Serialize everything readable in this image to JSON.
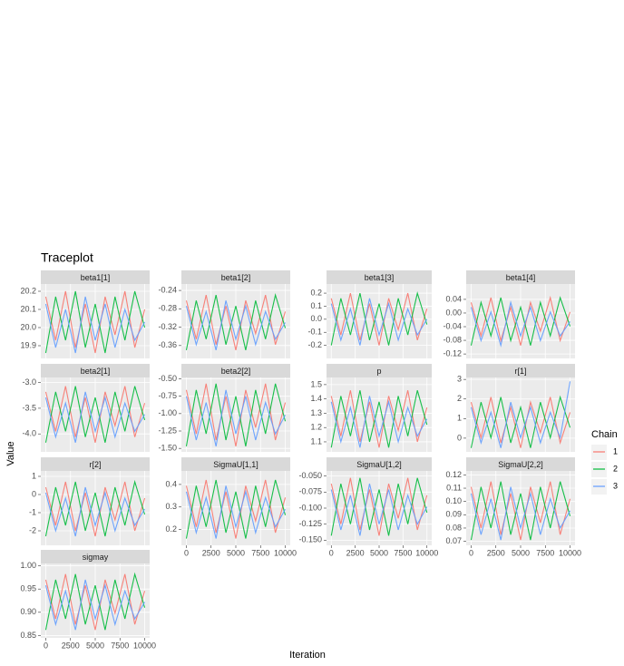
{
  "chart_data": {
    "type": "line",
    "title": "Traceplot",
    "xlabel": "Iteration",
    "ylabel": "Value",
    "legend_title": "Chain",
    "series": [
      {
        "name": "1",
        "color": "#F8766D"
      },
      {
        "name": "2",
        "color": "#00BA38"
      },
      {
        "name": "3",
        "color": "#619CFF"
      }
    ],
    "x": [
      0,
      1000,
      2000,
      3000,
      4000,
      5000,
      6000,
      7000,
      8000,
      9000,
      10000
    ],
    "xlim": [
      -500,
      10500
    ],
    "xticks": [
      0,
      2500,
      5000,
      7500,
      10000
    ],
    "grid": true,
    "facets": [
      {
        "name": "beta1[1]",
        "ylim": [
          19.83,
          20.24
        ],
        "yticks": [
          19.9,
          {
            "value": 20,
            "label": "20.0"
          },
          20.1,
          20.2
        ],
        "values": [
          [
            20.17,
            19.93,
            20.2,
            19.89,
            20.13,
            19.86,
            20.17,
            19.96,
            20.2,
            19.89,
            20.1
          ],
          [
            19.86,
            20.17,
            19.93,
            20.2,
            19.89,
            20.13,
            19.86,
            20.17,
            19.93,
            20.2,
            20.0
          ],
          [
            20.13,
            19.89,
            20.1,
            19.86,
            20.17,
            19.93,
            20.13,
            19.89,
            20.1,
            19.93,
            20.03
          ]
        ]
      },
      {
        "name": "beta1[2]",
        "ylim": [
          -0.388,
          -0.226
        ],
        "yticks": [
          -0.36,
          -0.32,
          -0.28,
          -0.24
        ],
        "values": [
          [
            -0.262,
            -0.346,
            -0.25,
            -0.358,
            -0.274,
            -0.37,
            -0.262,
            -0.334,
            -0.25,
            -0.358,
            -0.286
          ],
          [
            -0.37,
            -0.262,
            -0.346,
            -0.25,
            -0.358,
            -0.274,
            -0.37,
            -0.262,
            -0.346,
            -0.25,
            -0.322
          ],
          [
            -0.274,
            -0.358,
            -0.286,
            -0.37,
            -0.262,
            -0.346,
            -0.274,
            -0.358,
            -0.286,
            -0.346,
            -0.31
          ]
        ]
      },
      {
        "name": "beta1[3]",
        "ylim": [
          -0.3,
          0.27
        ],
        "yticks": [
          -0.2,
          -0.1,
          {
            "value": 0,
            "label": "0.0"
          },
          0.1,
          0.2
        ],
        "values": [
          [
            0.16,
            -0.12,
            0.2,
            -0.16,
            0.12,
            -0.2,
            0.16,
            -0.08,
            0.2,
            -0.16,
            0.08
          ],
          [
            -0.2,
            0.16,
            -0.12,
            0.2,
            -0.16,
            0.12,
            -0.2,
            0.16,
            -0.12,
            0.2,
            -0.04
          ],
          [
            0.12,
            -0.16,
            0.08,
            -0.2,
            0.16,
            -0.12,
            0.12,
            -0.16,
            0.08,
            -0.12,
            0
          ]
        ]
      },
      {
        "name": "beta1[4]",
        "ylim": [
          -0.133,
          0.085
        ],
        "yticks": [
          -0.12,
          -0.08,
          -0.04,
          {
            "value": 0,
            "label": "0.00"
          },
          0.04
        ],
        "values": [
          [
            0.031,
            -0.067,
            0.045,
            -0.081,
            0.017,
            -0.095,
            0.031,
            -0.053,
            0.045,
            -0.081,
            0.003
          ],
          [
            -0.095,
            0.031,
            -0.067,
            0.045,
            -0.081,
            0.017,
            -0.095,
            0.031,
            -0.067,
            0.045,
            -0.039
          ],
          [
            0.017,
            -0.081,
            0.003,
            -0.095,
            0.031,
            -0.067,
            0.017,
            -0.081,
            0.003,
            -0.067,
            -0.025
          ]
        ]
      },
      {
        "name": "beta2[1]",
        "ylim": [
          -4.35,
          -2.9
        ],
        "yticks": [
          {
            "value": -4,
            "label": "-4.0"
          },
          -3.5,
          {
            "value": -3,
            "label": "-3.0"
          }
        ],
        "values": [
          [
            -3.18,
            -3.95,
            -3.07,
            -4.06,
            -3.29,
            -4.17,
            -3.18,
            -3.84,
            -3.07,
            -4.06,
            -3.4
          ],
          [
            -4.17,
            -3.18,
            -3.95,
            -3.07,
            -4.06,
            -3.29,
            -4.17,
            -3.18,
            -3.95,
            -3.07,
            -3.73
          ],
          [
            -3.29,
            -4.06,
            -3.4,
            -4.17,
            -3.18,
            -3.95,
            -3.29,
            -4.06,
            -3.4,
            -3.95,
            -3.62
          ]
        ]
      },
      {
        "name": "beta2[2]",
        "ylim": [
          -1.55,
          -0.48
        ],
        "yticks": [
          {
            "value": -1.5,
            "label": "-1.50"
          },
          -1.25,
          {
            "value": -1,
            "label": "-1.00"
          },
          -0.75,
          {
            "value": -0.5,
            "label": "-0.50"
          }
        ],
        "values": [
          [
            -0.66,
            -1.29,
            -0.57,
            -1.38,
            -0.75,
            -1.47,
            -0.66,
            -1.2,
            -0.57,
            -1.38,
            -0.84
          ],
          [
            -1.47,
            -0.66,
            -1.29,
            -0.57,
            -1.38,
            -0.75,
            -1.47,
            -0.66,
            -1.29,
            -0.57,
            -1.11
          ],
          [
            -0.75,
            -1.38,
            -0.84,
            -1.47,
            -0.66,
            -1.29,
            -0.75,
            -1.38,
            -0.84,
            -1.29,
            -1.02
          ]
        ]
      },
      {
        "name": "p",
        "ylim": [
          1.03,
          1.55
        ],
        "yticks": [
          1.1,
          1.2,
          1.3,
          1.4,
          1.5
        ],
        "values": [
          [
            1.42,
            1.14,
            1.46,
            1.1,
            1.38,
            1.06,
            1.42,
            1.18,
            1.46,
            1.1,
            1.34
          ],
          [
            1.06,
            1.42,
            1.14,
            1.46,
            1.1,
            1.38,
            1.06,
            1.42,
            1.14,
            1.46,
            1.22
          ],
          [
            1.38,
            1.1,
            1.34,
            1.06,
            1.42,
            1.14,
            1.38,
            1.1,
            1.34,
            1.14,
            1.26
          ]
        ]
      },
      {
        "name": "r[1]",
        "ylim": [
          -0.7,
          3.1
        ],
        "yticks": [
          0,
          1,
          2,
          3
        ],
        "values": [
          [
            1.84,
            0.02,
            2.1,
            -0.24,
            1.58,
            -0.5,
            1.84,
            0.28,
            2.1,
            -0.24,
            1.32
          ],
          [
            -0.5,
            1.84,
            0.02,
            2.1,
            -0.24,
            1.58,
            -0.5,
            1.84,
            0.02,
            2.1,
            0.54
          ],
          [
            1.58,
            -0.24,
            1.32,
            -0.5,
            1.84,
            0.02,
            1.58,
            -0.24,
            1.32,
            0.02,
            2.9
          ]
        ]
      },
      {
        "name": "r[2]",
        "ylim": [
          -2.8,
          1.3
        ],
        "yticks": [
          -2,
          -1,
          0,
          1
        ],
        "values": [
          [
            0.4,
            -1.7,
            0.7,
            -2.0,
            0.1,
            -2.3,
            0.4,
            -1.4,
            0.7,
            -2.0,
            -0.2
          ],
          [
            -2.3,
            0.4,
            -1.7,
            0.7,
            -2.0,
            0.1,
            -2.3,
            0.4,
            -1.7,
            0.7,
            -1.1
          ],
          [
            0.1,
            -2.0,
            -0.2,
            -2.3,
            0.4,
            -1.7,
            0.1,
            -2.0,
            -0.2,
            -1.7,
            -0.8
          ]
        ]
      },
      {
        "name": "SigmaU[1,1]",
        "ylim": [
          0.13,
          0.46
        ],
        "yticks": [
          0.2,
          0.3,
          0.4
        ],
        "values": [
          [
            0.394,
            0.212,
            0.42,
            0.186,
            0.368,
            0.16,
            0.394,
            0.238,
            0.42,
            0.186,
            0.342
          ],
          [
            0.16,
            0.394,
            0.212,
            0.42,
            0.186,
            0.368,
            0.16,
            0.394,
            0.212,
            0.42,
            0.264
          ],
          [
            0.368,
            0.186,
            0.342,
            0.16,
            0.394,
            0.212,
            0.368,
            0.186,
            0.342,
            0.212,
            0.29
          ]
        ]
      },
      {
        "name": "SigmaU[1,2]",
        "ylim": [
          -0.158,
          -0.042
        ],
        "yticks": [
          {
            "value": -0.15,
            "label": "-0.150"
          },
          -0.125,
          {
            "value": -0.1,
            "label": "-0.100"
          },
          -0.075,
          {
            "value": -0.05,
            "label": "-0.050"
          }
        ],
        "values": [
          [
            -0.062,
            -0.125,
            -0.053,
            -0.134,
            -0.071,
            -0.143,
            -0.062,
            -0.116,
            -0.053,
            -0.134,
            -0.08
          ],
          [
            -0.143,
            -0.062,
            -0.125,
            -0.053,
            -0.134,
            -0.071,
            -0.143,
            -0.062,
            -0.125,
            -0.053,
            -0.107
          ],
          [
            -0.071,
            -0.134,
            -0.08,
            -0.143,
            -0.062,
            -0.125,
            -0.071,
            -0.134,
            -0.08,
            -0.125,
            -0.098
          ]
        ]
      },
      {
        "name": "SigmaU[2,2]",
        "ylim": [
          0.067,
          0.123
        ],
        "yticks": [
          0.07,
          0.08,
          0.09,
          {
            "value": 0.1,
            "label": "0.10"
          },
          0.11,
          0.12
        ],
        "values": [
          [
            0.111,
            0.08,
            0.115,
            0.075,
            0.106,
            0.071,
            0.111,
            0.084,
            0.115,
            0.075,
            0.102
          ],
          [
            0.071,
            0.111,
            0.08,
            0.115,
            0.075,
            0.106,
            0.071,
            0.111,
            0.08,
            0.115,
            0.089
          ],
          [
            0.106,
            0.075,
            0.102,
            0.071,
            0.111,
            0.08,
            0.106,
            0.075,
            0.102,
            0.08,
            0.093
          ]
        ]
      },
      {
        "name": "sigmay",
        "ylim": [
          0.845,
          1.005
        ],
        "yticks": [
          0.85,
          {
            "value": 0.9,
            "label": "0.90"
          },
          0.95,
          {
            "value": 1,
            "label": "1.00"
          }
        ],
        "values": [
          [
            0.97,
            0.886,
            0.982,
            0.874,
            0.958,
            0.862,
            0.97,
            0.898,
            0.982,
            0.874,
            0.946
          ],
          [
            0.862,
            0.97,
            0.886,
            0.982,
            0.874,
            0.958,
            0.862,
            0.97,
            0.886,
            0.982,
            0.91
          ],
          [
            0.958,
            0.874,
            0.946,
            0.862,
            0.97,
            0.886,
            0.958,
            0.874,
            0.946,
            0.886,
            0.922
          ]
        ]
      }
    ]
  }
}
